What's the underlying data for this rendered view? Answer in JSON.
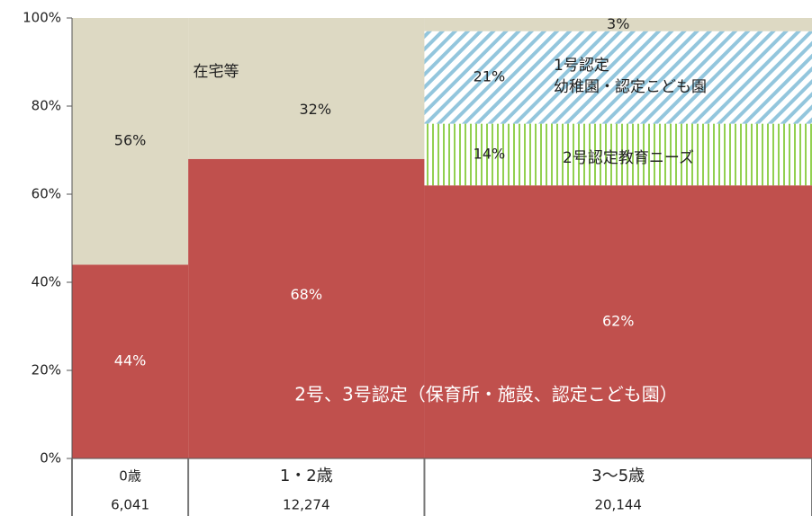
{
  "chart_data": {
    "type": "mekko",
    "categories": [
      "0歳",
      "1・2歳",
      "3～5歳"
    ],
    "widths": [
      6041,
      12274,
      20144
    ],
    "width_labels": [
      "6,041",
      "12,274",
      "20,144"
    ],
    "ylim": [
      0,
      100
    ],
    "yticks": [
      {
        "value": 0,
        "label": "0%"
      },
      {
        "value": 20,
        "label": "20%"
      },
      {
        "value": 40,
        "label": "40%"
      },
      {
        "value": 60,
        "label": "60%"
      },
      {
        "value": 80,
        "label": "80%"
      },
      {
        "value": 100,
        "label": "100%"
      }
    ],
    "series": [
      {
        "name_lines": [
          "2号、3号認定（保育所・施設、認定こども園）"
        ],
        "color": "#c0504d",
        "hatch": "none",
        "values": [
          44,
          68,
          62
        ],
        "value_labels": [
          "44%",
          "68%",
          "62%"
        ]
      },
      {
        "name_lines": [
          "2号認定教育ニーズ"
        ],
        "color": "#92d050",
        "hatch": "vertical",
        "values": [
          0,
          0,
          14
        ],
        "value_labels": [
          null,
          null,
          "14%"
        ]
      },
      {
        "name_lines": [
          "1号認定",
          "幼稚園・認定こども園"
        ],
        "color": "#93c6dd",
        "hatch": "diagonal",
        "values": [
          0,
          0,
          21
        ],
        "value_labels": [
          null,
          null,
          "21%"
        ]
      },
      {
        "name_lines": [
          "在宅等"
        ],
        "color": "#ddd9c3",
        "hatch": "none",
        "values": [
          56,
          32,
          3
        ],
        "value_labels": [
          "56%",
          "32%",
          "3%"
        ]
      }
    ]
  }
}
